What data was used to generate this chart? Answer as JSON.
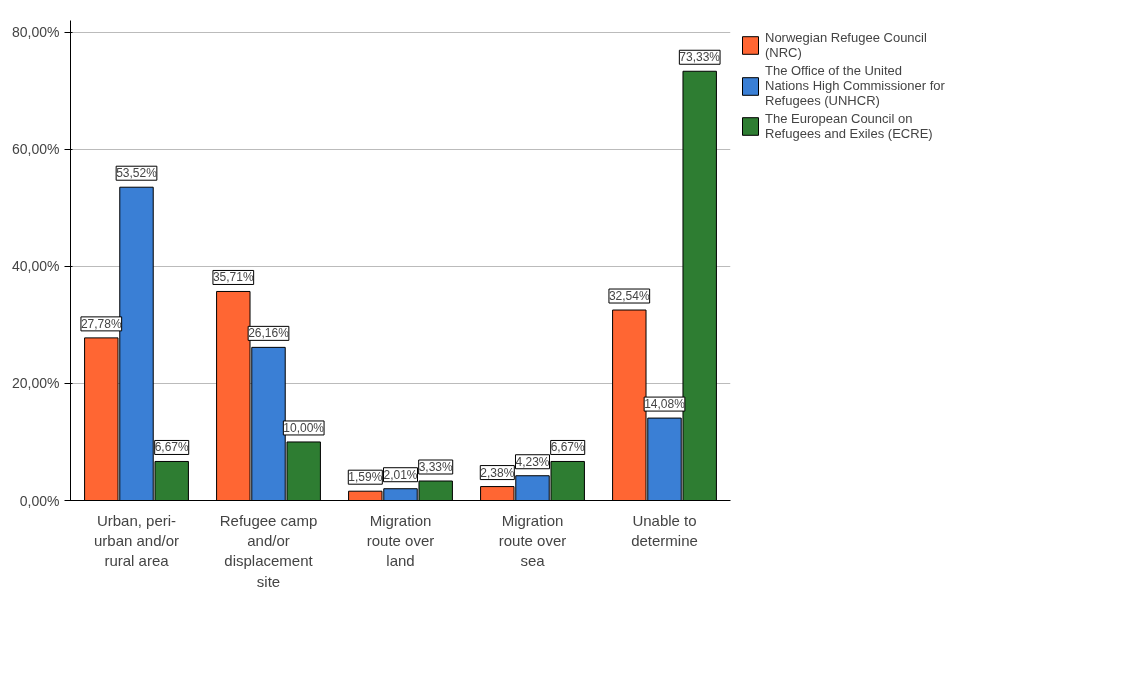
{
  "chart_data": {
    "type": "bar",
    "categories": [
      "Urban, peri-urban and/or rural area",
      "Refugee camp and/or displacement site",
      "Migration route over land",
      "Migration route over sea",
      "Unable to determine"
    ],
    "series": [
      {
        "name": "Norwegian Refugee Council (NRC)",
        "color": "#ff6633",
        "values": [
          27.78,
          35.71,
          1.59,
          2.38,
          32.54
        ],
        "value_labels": [
          "27,78%",
          "35,71%",
          "1,59%",
          "2,38%",
          "32,54%"
        ]
      },
      {
        "name": "The Office of the United Nations High Commissioner for Refugees (UNHCR)",
        "color": "#3a7fd5",
        "values": [
          53.52,
          26.16,
          2.01,
          4.23,
          14.08
        ],
        "value_labels": [
          "53,52%",
          "26,16%",
          "2,01%",
          "4,23%",
          "14,08%"
        ]
      },
      {
        "name": "The European Council on Refugees and Exiles (ECRE)",
        "color": "#2e7d32",
        "values": [
          6.67,
          10.0,
          3.33,
          6.67,
          73.33
        ],
        "value_labels": [
          "6,67%",
          "10,00%",
          "3,33%",
          "6,67%",
          "73,33%"
        ]
      }
    ],
    "ylim": [
      0,
      82
    ],
    "yticks": [
      {
        "value": 0,
        "label": "0,00%"
      },
      {
        "value": 20,
        "label": "20,00%"
      },
      {
        "value": 40,
        "label": "40,00%"
      },
      {
        "value": 60,
        "label": "60,00%"
      },
      {
        "value": 80,
        "label": "80,00%"
      }
    ],
    "grid": "y",
    "legend": "right"
  }
}
